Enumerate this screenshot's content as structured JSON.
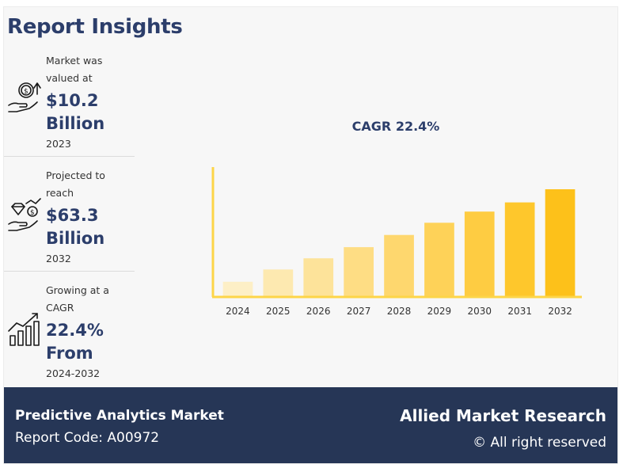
{
  "header": {
    "title": "Report Insights"
  },
  "stats": [
    {
      "label": "Market was valued at",
      "value": "$10.2 Billion",
      "year": "2023",
      "icon": "money-hand-icon"
    },
    {
      "label": "Projected to reach",
      "value": "$63.3 Billion",
      "year": "2032",
      "icon": "diamond-coin-hand-icon"
    },
    {
      "label": "Growing at a CAGR",
      "value": "22.4% From",
      "year": "2024-2032",
      "icon": "growth-chart-icon"
    }
  ],
  "chart_data": {
    "type": "bar",
    "title": "CAGR 22.4%",
    "categories": [
      "2024",
      "2025",
      "2026",
      "2027",
      "2028",
      "2029",
      "2030",
      "2031",
      "2032"
    ],
    "values": [
      1.5,
      2.7,
      3.8,
      4.9,
      6.1,
      7.3,
      8.4,
      9.3,
      10.6
    ],
    "xlabel": "",
    "ylabel": "",
    "ylim": [
      0,
      12
    ],
    "grid": false,
    "colors": [
      "#fdefc6",
      "#fde9b0",
      "#fde39a",
      "#fedd84",
      "#fed76e",
      "#fed258",
      "#fecc42",
      "#fec72c",
      "#fdc11a"
    ],
    "axis_color": "#fdd548"
  },
  "footer": {
    "title": "Predictive Analytics Market",
    "report_code": "Report Code: A00972",
    "brand": "Allied Market Research",
    "rights": "© All right reserved"
  }
}
